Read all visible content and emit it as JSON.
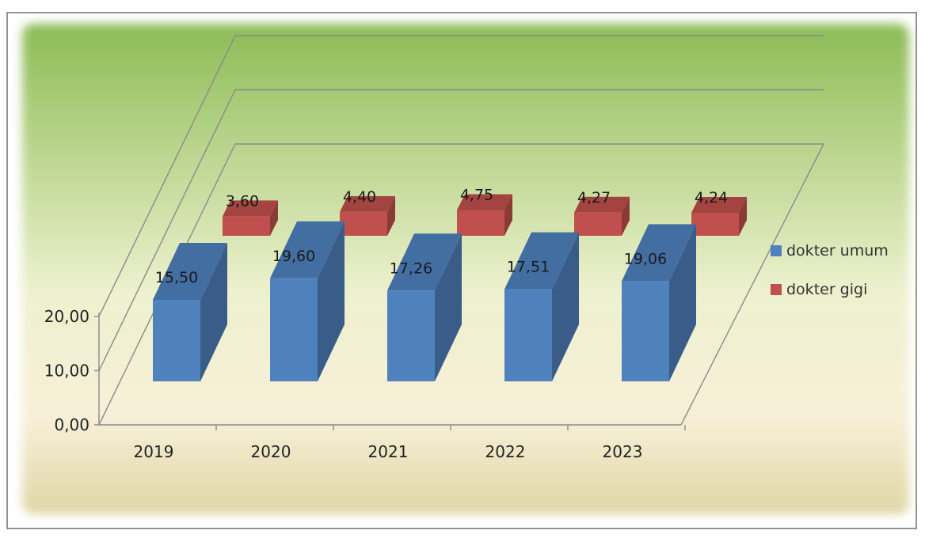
{
  "chart_data": {
    "type": "bar",
    "categories": [
      "2019",
      "2020",
      "2021",
      "2022",
      "2023"
    ],
    "series": [
      {
        "name": "dokter umum",
        "values": [
          15.5,
          19.6,
          17.26,
          17.51,
          19.06
        ],
        "color": "#4f81bd"
      },
      {
        "name": "dokter gigi",
        "values": [
          3.6,
          4.4,
          4.75,
          4.27,
          4.24
        ],
        "color": "#c0504d"
      }
    ],
    "data_labels": {
      "dokter umum": [
        "15,50",
        "19,60",
        "17,26",
        "17,51",
        "19,06"
      ],
      "dokter gigi": [
        "3,60",
        "4,40",
        "4,75",
        "4,27",
        "4,24"
      ]
    },
    "y_ticks": [
      {
        "value": 0,
        "label": "0,00"
      },
      {
        "value": 10,
        "label": "10,00"
      },
      {
        "value": 20,
        "label": "20,00"
      }
    ],
    "ylim": [
      0,
      20
    ],
    "xlabel": "",
    "ylabel": "",
    "grid": true,
    "legend": "right",
    "background": {
      "top": "#93c060",
      "bottom": "#f5f0d8"
    }
  }
}
